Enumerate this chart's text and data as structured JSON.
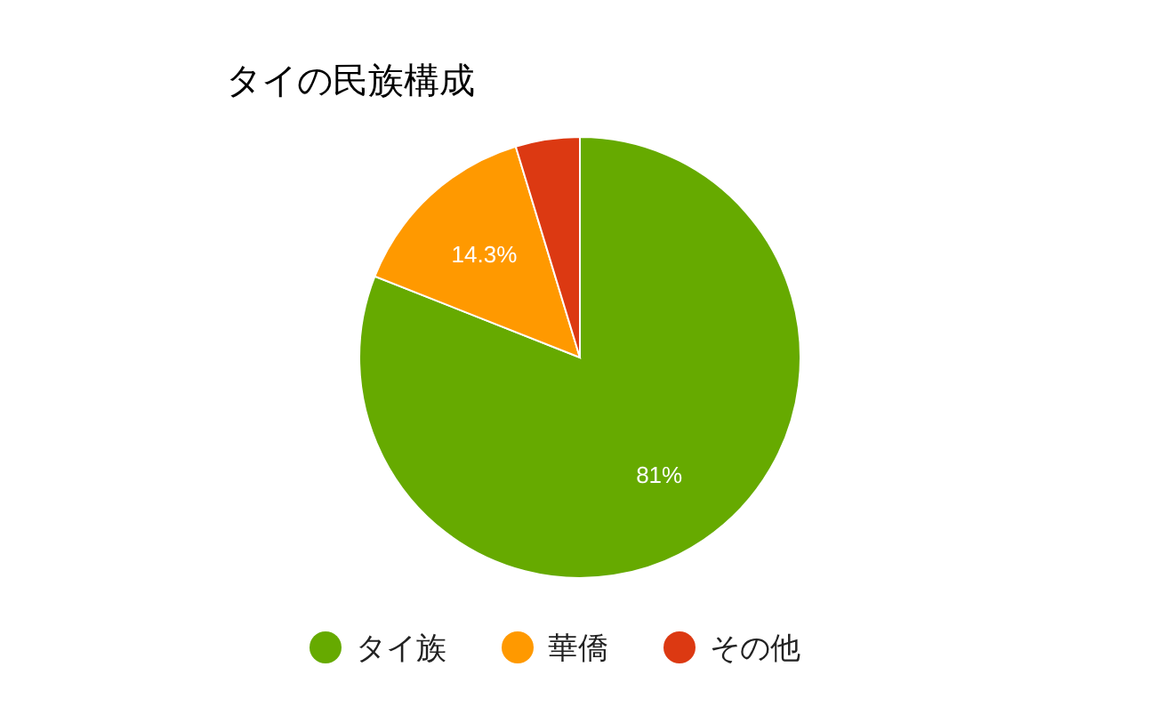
{
  "chart_data": {
    "type": "pie",
    "title": "タイの民族構成",
    "categories": [
      "タイ族",
      "華僑",
      "その他"
    ],
    "values": [
      81,
      14.3,
      4.7
    ],
    "colors": [
      "#66aa00",
      "#ff9900",
      "#dc3912"
    ],
    "value_labels": [
      "81%",
      "14.3%",
      null
    ],
    "legend": "bottom"
  }
}
